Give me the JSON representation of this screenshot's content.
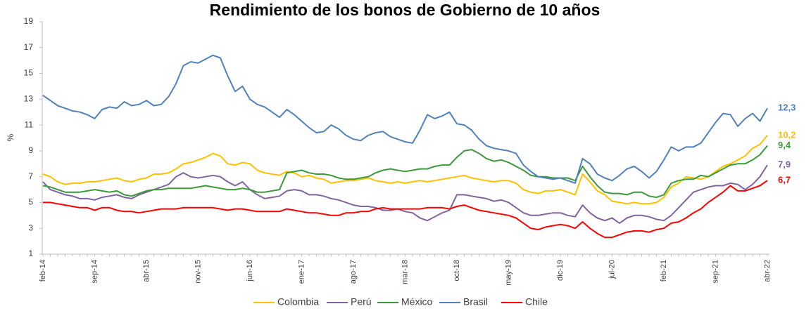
{
  "chart_data": {
    "type": "line",
    "title": "Rendimiento de los bonos de Gobierno de 10 años",
    "y_label": "%",
    "categories": [
      "feb-14",
      null,
      null,
      null,
      null,
      null,
      null,
      "sep-14",
      null,
      null,
      null,
      null,
      null,
      null,
      "abr-15",
      null,
      null,
      null,
      null,
      null,
      null,
      "nov-15",
      null,
      null,
      null,
      null,
      null,
      null,
      "jun-16",
      null,
      null,
      null,
      null,
      null,
      null,
      "ene-17",
      null,
      null,
      null,
      null,
      null,
      null,
      "ago-17",
      null,
      null,
      null,
      null,
      null,
      null,
      "mar-18",
      null,
      null,
      null,
      null,
      null,
      null,
      "oct-18",
      null,
      null,
      null,
      null,
      null,
      null,
      "may-19",
      null,
      null,
      null,
      null,
      null,
      null,
      "dic-19",
      null,
      null,
      null,
      null,
      null,
      null,
      "jul-20",
      null,
      null,
      null,
      null,
      null,
      null,
      "feb-21",
      null,
      null,
      null,
      null,
      null,
      null,
      "sep-21",
      null,
      null,
      null,
      null,
      null,
      null,
      "abr-22"
    ],
    "ylim": [
      1,
      19
    ],
    "yticks": [
      1,
      3,
      5,
      7,
      9,
      11,
      13,
      15,
      17,
      19
    ],
    "grid": false,
    "legend": "bottom",
    "series": [
      {
        "name": "Colombia",
        "color": "#FFC000",
        "value_labels": {
          "98": "10,2"
        },
        "values": [
          7.2,
          7.0,
          6.6,
          6.4,
          6.5,
          6.5,
          6.6,
          6.6,
          6.7,
          6.8,
          6.9,
          6.7,
          6.6,
          6.8,
          6.9,
          7.2,
          7.2,
          7.3,
          7.6,
          8.0,
          8.1,
          8.3,
          8.5,
          8.8,
          8.6,
          8.0,
          7.9,
          8.1,
          8.0,
          7.5,
          7.3,
          7.2,
          7.1,
          7.4,
          7.3,
          7.0,
          7.1,
          6.9,
          6.8,
          6.5,
          6.6,
          6.7,
          6.7,
          6.8,
          6.9,
          6.7,
          6.6,
          6.5,
          6.6,
          6.5,
          6.6,
          6.7,
          6.6,
          6.7,
          6.8,
          6.9,
          7.0,
          7.1,
          6.9,
          6.8,
          6.7,
          6.6,
          6.7,
          6.7,
          6.5,
          6.0,
          5.8,
          5.7,
          5.9,
          5.9,
          6.0,
          5.8,
          5.6,
          7.2,
          6.6,
          5.9,
          5.6,
          5.1,
          5.0,
          4.9,
          5.0,
          4.9,
          4.9,
          5.0,
          5.4,
          6.2,
          6.5,
          7.0,
          6.9,
          6.8,
          7.0,
          7.4,
          7.8,
          8.0,
          8.3,
          8.6,
          9.2,
          9.5,
          10.2
        ]
      },
      {
        "name": "Perú",
        "color": "#8064A2",
        "value_labels": {
          "98": "7,9"
        },
        "values": [
          6.6,
          6.0,
          5.8,
          5.6,
          5.5,
          5.3,
          5.3,
          5.2,
          5.4,
          5.5,
          5.6,
          5.4,
          5.3,
          5.6,
          5.8,
          6.0,
          6.2,
          6.4,
          7.0,
          7.3,
          7.0,
          6.9,
          7.0,
          7.1,
          7.0,
          6.6,
          6.3,
          6.6,
          6.0,
          5.6,
          5.3,
          5.4,
          5.5,
          5.9,
          6.0,
          5.9,
          5.6,
          5.6,
          5.5,
          5.3,
          5.2,
          5.0,
          4.8,
          4.7,
          4.7,
          4.6,
          4.4,
          4.4,
          4.5,
          4.3,
          4.2,
          3.8,
          3.6,
          3.9,
          4.2,
          4.4,
          5.6,
          5.6,
          5.5,
          5.4,
          5.3,
          5.1,
          5.2,
          5.0,
          4.6,
          4.2,
          4.0,
          4.0,
          4.1,
          4.2,
          4.2,
          4.0,
          3.9,
          4.8,
          4.2,
          3.8,
          3.6,
          3.8,
          3.4,
          3.8,
          4.0,
          4.0,
          3.9,
          3.7,
          3.6,
          4.0,
          4.6,
          5.2,
          5.8,
          6.0,
          6.2,
          6.3,
          6.3,
          6.5,
          6.4,
          6.0,
          6.4,
          7.0,
          7.9
        ]
      },
      {
        "name": "México",
        "color": "#3A9A3A",
        "value_labels": {
          "98": "9,4"
        },
        "values": [
          6.3,
          6.2,
          6.0,
          5.8,
          5.8,
          5.8,
          5.9,
          6.0,
          5.9,
          5.8,
          5.9,
          5.6,
          5.5,
          5.7,
          5.9,
          6.0,
          6.0,
          6.1,
          6.1,
          6.1,
          6.1,
          6.2,
          6.3,
          6.2,
          6.1,
          6.0,
          6.0,
          6.1,
          6.0,
          5.8,
          5.8,
          5.9,
          6.0,
          7.3,
          7.4,
          7.5,
          7.3,
          7.2,
          7.2,
          7.1,
          6.9,
          6.8,
          6.8,
          6.9,
          7.0,
          7.3,
          7.5,
          7.6,
          7.5,
          7.4,
          7.5,
          7.6,
          7.6,
          7.8,
          7.9,
          7.9,
          8.5,
          9.0,
          9.1,
          8.8,
          8.4,
          8.2,
          8.3,
          8.1,
          7.8,
          7.5,
          7.1,
          7.0,
          7.0,
          6.9,
          6.9,
          6.9,
          6.7,
          7.8,
          7.0,
          6.3,
          5.8,
          5.7,
          5.7,
          5.6,
          5.8,
          5.8,
          5.5,
          5.4,
          5.6,
          6.5,
          6.7,
          6.8,
          6.8,
          7.1,
          7.0,
          7.3,
          7.6,
          7.9,
          8.0,
          8.0,
          8.3,
          8.7,
          9.4
        ]
      },
      {
        "name": "Brasil",
        "color": "#4F81BD",
        "value_labels": {
          "98": "12,3"
        },
        "values": [
          13.3,
          12.9,
          12.5,
          12.3,
          12.1,
          12.0,
          11.8,
          11.5,
          12.2,
          12.4,
          12.3,
          12.8,
          12.5,
          12.6,
          12.9,
          12.5,
          12.6,
          13.2,
          14.2,
          15.6,
          15.9,
          15.8,
          16.1,
          16.4,
          16.2,
          14.8,
          13.6,
          14.0,
          13.0,
          12.6,
          12.4,
          12.0,
          11.6,
          12.2,
          11.8,
          11.3,
          10.8,
          10.4,
          10.5,
          11.0,
          10.7,
          10.2,
          9.9,
          9.8,
          10.2,
          10.4,
          10.5,
          10.1,
          9.9,
          9.7,
          9.6,
          10.6,
          11.8,
          11.5,
          11.7,
          12.0,
          11.1,
          11.0,
          10.6,
          9.9,
          9.4,
          9.2,
          9.1,
          9.0,
          8.8,
          7.9,
          7.4,
          7.0,
          6.9,
          6.8,
          6.9,
          6.7,
          6.5,
          8.4,
          8.0,
          7.2,
          6.9,
          6.7,
          7.1,
          7.6,
          7.8,
          7.4,
          6.9,
          7.4,
          8.3,
          9.3,
          9.0,
          9.3,
          9.3,
          9.6,
          10.4,
          11.2,
          11.9,
          11.8,
          10.9,
          11.5,
          11.9,
          11.3,
          12.3
        ]
      },
      {
        "name": "Chile",
        "color": "#FF0000",
        "value_labels": {
          "98": "6,7"
        },
        "values": [
          5.0,
          5.0,
          4.9,
          4.8,
          4.7,
          4.6,
          4.6,
          4.4,
          4.6,
          4.6,
          4.4,
          4.3,
          4.3,
          4.2,
          4.3,
          4.4,
          4.5,
          4.5,
          4.5,
          4.6,
          4.6,
          4.6,
          4.6,
          4.6,
          4.5,
          4.4,
          4.5,
          4.5,
          4.4,
          4.3,
          4.3,
          4.3,
          4.3,
          4.5,
          4.4,
          4.3,
          4.2,
          4.2,
          4.1,
          4.0,
          4.0,
          4.2,
          4.2,
          4.3,
          4.3,
          4.5,
          4.6,
          4.5,
          4.5,
          4.5,
          4.5,
          4.5,
          4.6,
          4.6,
          4.6,
          4.5,
          4.7,
          4.8,
          4.6,
          4.4,
          4.3,
          4.2,
          4.1,
          4.0,
          3.8,
          3.4,
          3.0,
          2.9,
          3.1,
          3.2,
          3.3,
          3.2,
          3.0,
          3.5,
          3.0,
          2.6,
          2.3,
          2.3,
          2.5,
          2.7,
          2.8,
          2.8,
          2.7,
          2.9,
          3.0,
          3.4,
          3.5,
          3.8,
          4.2,
          4.5,
          5.0,
          5.4,
          5.8,
          6.3,
          5.9,
          5.9,
          6.1,
          6.3,
          6.7
        ]
      }
    ]
  }
}
